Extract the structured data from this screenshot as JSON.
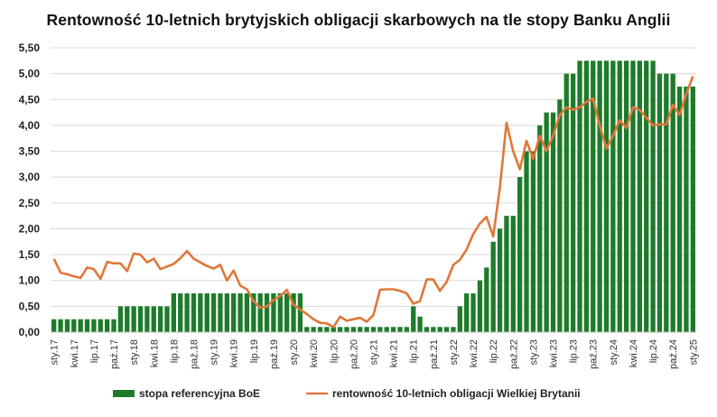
{
  "chart_data": {
    "type": "bar+line",
    "title": "Rentowność 10-letnich brytyjskich obligacji skarbowych na tle stopy Banku Anglii",
    "xlabel": "",
    "ylabel": "",
    "ylim": [
      0,
      5.5
    ],
    "yticks": [
      "0,00",
      "0,50",
      "1,00",
      "1,50",
      "2,00",
      "2,50",
      "3,00",
      "3,50",
      "4,00",
      "4,50",
      "5,00",
      "5,50"
    ],
    "grid": true,
    "legend_position": "bottom",
    "x_tick_labels": [
      "sty.17",
      "kwi.17",
      "lip.17",
      "paź.17",
      "sty.18",
      "kwi.18",
      "lip.18",
      "paź.18",
      "sty.19",
      "kwi.19",
      "lip.19",
      "paź.19",
      "sty.20",
      "kwi.20",
      "lip.20",
      "paź.20",
      "sty.21",
      "kwi.21",
      "lip.21",
      "paź.21",
      "sty.22",
      "kwi.22",
      "lip.22",
      "paź.22",
      "sty.23",
      "kwi.23",
      "lip.23",
      "paź.23",
      "sty.24",
      "kwi.24",
      "lip.24",
      "paź.24",
      "sty.25"
    ],
    "x_tick_every_months": 3,
    "series": [
      {
        "name": "stopa referencyjna BoE",
        "type": "bar",
        "color": "#1e7b2a",
        "values": [
          0.25,
          0.25,
          0.25,
          0.25,
          0.25,
          0.25,
          0.25,
          0.25,
          0.25,
          0.25,
          0.5,
          0.5,
          0.5,
          0.5,
          0.5,
          0.5,
          0.5,
          0.5,
          0.75,
          0.75,
          0.75,
          0.75,
          0.75,
          0.75,
          0.75,
          0.75,
          0.75,
          0.75,
          0.75,
          0.75,
          0.75,
          0.75,
          0.75,
          0.75,
          0.75,
          0.75,
          0.75,
          0.75,
          0.1,
          0.1,
          0.1,
          0.1,
          0.1,
          0.1,
          0.1,
          0.1,
          0.1,
          0.1,
          0.1,
          0.1,
          0.1,
          0.1,
          0.1,
          0.1,
          0.5,
          0.3,
          0.1,
          0.1,
          0.1,
          0.1,
          0.1,
          0.5,
          0.75,
          0.75,
          1.0,
          1.25,
          1.75,
          2.0,
          2.25,
          2.25,
          3.0,
          3.5,
          3.5,
          4.0,
          4.25,
          4.25,
          4.5,
          5.0,
          5.0,
          5.25,
          5.25,
          5.25,
          5.25,
          5.25,
          5.25,
          5.25,
          5.25,
          5.25,
          5.25,
          5.25,
          5.25,
          5.0,
          5.0,
          5.0,
          4.75,
          4.75,
          4.75
        ]
      },
      {
        "name": "rentowność 10-letnich obligacji Wielkiej Brytanii",
        "type": "line",
        "color": "#e0773a",
        "values": [
          1.42,
          1.15,
          1.12,
          1.08,
          1.05,
          1.25,
          1.22,
          1.03,
          1.36,
          1.33,
          1.33,
          1.18,
          1.52,
          1.5,
          1.35,
          1.42,
          1.22,
          1.27,
          1.32,
          1.43,
          1.57,
          1.42,
          1.35,
          1.28,
          1.23,
          1.3,
          1.0,
          1.19,
          0.9,
          0.83,
          0.6,
          0.47,
          0.5,
          0.62,
          0.7,
          0.82,
          0.53,
          0.44,
          0.35,
          0.25,
          0.18,
          0.17,
          0.1,
          0.3,
          0.22,
          0.25,
          0.28,
          0.2,
          0.33,
          0.82,
          0.83,
          0.83,
          0.8,
          0.75,
          0.55,
          0.6,
          1.02,
          1.02,
          0.8,
          0.97,
          1.3,
          1.4,
          1.6,
          1.9,
          2.1,
          2.23,
          1.85,
          2.8,
          4.05,
          3.5,
          3.15,
          3.7,
          3.35,
          3.8,
          3.5,
          3.8,
          4.2,
          4.35,
          4.3,
          4.35,
          4.45,
          4.52,
          4.0,
          3.55,
          3.8,
          4.1,
          3.95,
          4.35,
          4.3,
          4.15,
          4.0,
          4.02,
          4.02,
          4.4,
          4.2,
          4.6,
          4.95
        ]
      }
    ]
  }
}
